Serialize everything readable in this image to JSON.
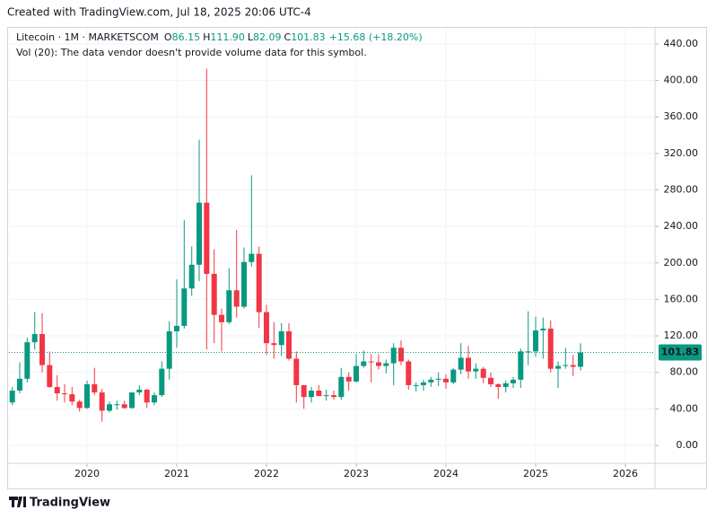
{
  "page": {
    "credit": "Created with TradingView.com, Jul 18, 2025 20:06 UTC-4",
    "brand": "TradingView"
  },
  "chart_data": {
    "type": "candlestick",
    "title": "Litecoin · 1M · MARKETSCOM",
    "ohlc_header": [
      {
        "label": "O",
        "value": "86.15"
      },
      {
        "label": "H",
        "value": "111.90"
      },
      {
        "label": "L",
        "value": "82.09"
      },
      {
        "label": "C",
        "value": "101.83"
      }
    ],
    "change": "+15.68 (+18.20%)",
    "subtitle": "Vol (20): The data vendor doesn't provide volume data for this symbol.",
    "up_color": "#089981",
    "down_color": "#f23645",
    "x": [
      2019.167,
      2019.25,
      2019.333,
      2019.417,
      2019.5,
      2019.583,
      2019.667,
      2019.75,
      2019.833,
      2019.917,
      2020.0,
      2020.083,
      2020.167,
      2020.25,
      2020.333,
      2020.417,
      2020.5,
      2020.583,
      2020.667,
      2020.75,
      2020.833,
      2020.917,
      2021.0,
      2021.083,
      2021.167,
      2021.25,
      2021.333,
      2021.417,
      2021.5,
      2021.583,
      2021.667,
      2021.75,
      2021.833,
      2021.917,
      2022.0,
      2022.083,
      2022.167,
      2022.25,
      2022.333,
      2022.417,
      2022.5,
      2022.583,
      2022.667,
      2022.75,
      2022.833,
      2022.917,
      2023.0,
      2023.083,
      2023.167,
      2023.25,
      2023.333,
      2023.417,
      2023.5,
      2023.583,
      2023.667,
      2023.75,
      2023.833,
      2023.917,
      2024.0,
      2024.083,
      2024.167,
      2024.25,
      2024.333,
      2024.417,
      2024.5,
      2024.583,
      2024.667,
      2024.75,
      2024.833,
      2024.917,
      2025.0,
      2025.083,
      2025.167,
      2025.25,
      2025.333,
      2025.417,
      2025.5
    ],
    "open": [
      47,
      60,
      73,
      113,
      122,
      88,
      64,
      57,
      56,
      48,
      41,
      67,
      58,
      38,
      45,
      45,
      41,
      58,
      61,
      47,
      55,
      84,
      125,
      131,
      172,
      198,
      266,
      188,
      143,
      135,
      170,
      152,
      201,
      210,
      146,
      112,
      110,
      125,
      95,
      66,
      53,
      60,
      54,
      55,
      53,
      75,
      70,
      87,
      92,
      91,
      87,
      90,
      107,
      92,
      66,
      66,
      69,
      72,
      73,
      69,
      83,
      96,
      81,
      84,
      74,
      67,
      64,
      68,
      72,
      103,
      103,
      126,
      128,
      84,
      87,
      88,
      86.15
    ],
    "high": [
      64,
      91,
      118,
      146,
      145,
      103,
      77,
      67,
      64,
      50,
      71,
      85,
      62,
      48,
      49,
      49,
      58,
      66,
      62,
      58,
      92,
      136,
      182,
      247,
      218,
      335,
      413,
      215,
      150,
      194,
      236,
      217,
      296,
      218,
      154,
      135,
      134,
      134,
      103,
      66,
      64,
      66,
      61,
      60,
      85,
      80,
      100,
      104,
      100,
      100,
      94,
      112,
      115,
      94,
      69,
      72,
      75,
      80,
      78,
      85,
      112,
      109,
      90,
      86,
      80,
      68,
      71,
      75,
      106,
      147,
      141,
      140,
      137,
      92,
      107,
      99,
      111.9
    ],
    "low": [
      44,
      57,
      69,
      105,
      80,
      63,
      49,
      47,
      44,
      37,
      40,
      55,
      26,
      36,
      39,
      40,
      40,
      55,
      41,
      44,
      53,
      72,
      107,
      128,
      164,
      180,
      105,
      112,
      103,
      133,
      140,
      150,
      196,
      129,
      99,
      95,
      98,
      93,
      47,
      40,
      47,
      54,
      49,
      50,
      50,
      60,
      69,
      85,
      69,
      83,
      79,
      66,
      88,
      61,
      59,
      60,
      64,
      65,
      62,
      67,
      78,
      73,
      73,
      68,
      64,
      51,
      58,
      63,
      63,
      88,
      97,
      95,
      80,
      63,
      84,
      76,
      82.09
    ],
    "close": [
      60,
      73,
      113,
      122,
      88,
      64,
      57,
      56,
      48,
      41,
      67,
      58,
      38,
      45,
      45,
      41,
      58,
      61,
      47,
      55,
      84,
      125,
      131,
      172,
      198,
      266,
      188,
      143,
      135,
      170,
      152,
      201,
      210,
      146,
      112,
      110,
      125,
      95,
      66,
      53,
      60,
      54,
      55,
      53,
      75,
      70,
      87,
      92,
      91,
      87,
      90,
      107,
      92,
      66,
      66,
      69,
      72,
      73,
      69,
      83,
      96,
      81,
      84,
      74,
      67,
      64,
      68,
      72,
      103,
      103,
      126,
      128,
      84,
      87,
      88,
      86.15,
      101.83
    ],
    "xlim": [
      2019.13,
      2026.33
    ],
    "xticks": [
      2020,
      2021,
      2022,
      2023,
      2024,
      2025,
      2026
    ],
    "ylim": [
      -19.7,
      455.7
    ],
    "yticks": [
      {
        "value": 0,
        "label": "0.00"
      },
      {
        "value": 40,
        "label": "40.00"
      },
      {
        "value": 80,
        "label": "80.00"
      },
      {
        "value": 120,
        "label": "120.00"
      },
      {
        "value": 160,
        "label": "160.00"
      },
      {
        "value": 200,
        "label": "200.00"
      },
      {
        "value": 240,
        "label": "240.00"
      },
      {
        "value": 280,
        "label": "280.00"
      },
      {
        "value": 320,
        "label": "320.00"
      },
      {
        "value": 360,
        "label": "360.00"
      },
      {
        "value": 400,
        "label": "400.00"
      },
      {
        "value": 440,
        "label": "440.00"
      }
    ],
    "grid": true
  }
}
